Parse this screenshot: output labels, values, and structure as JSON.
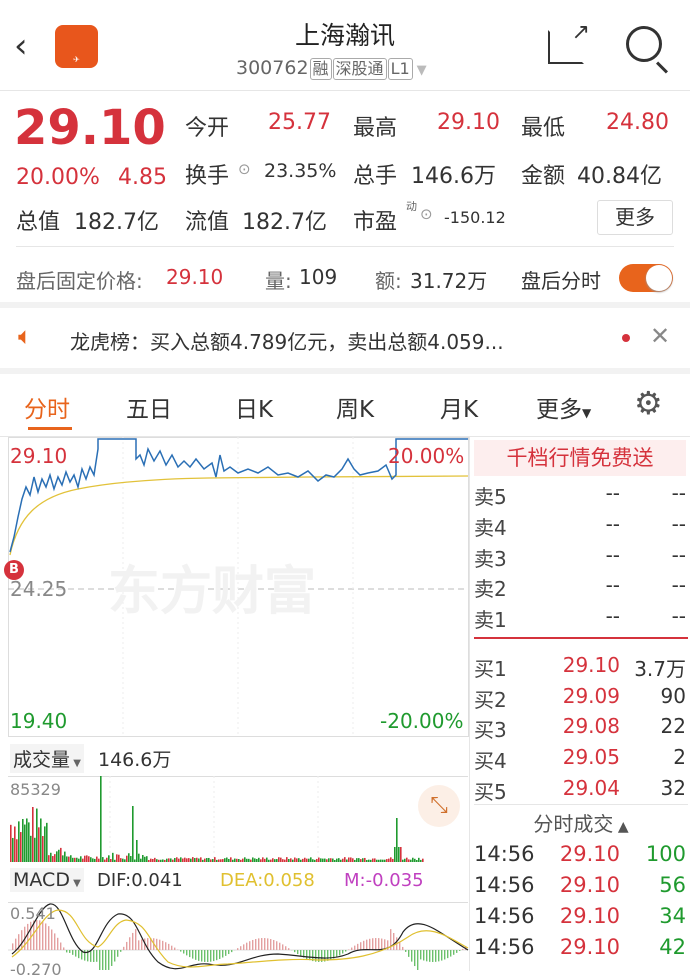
{
  "header": {
    "title": "上海瀚讯",
    "code": "300762",
    "tags": [
      "融",
      "深股通",
      "L1"
    ],
    "logo_text": "东方财富"
  },
  "quote": {
    "price": "29.10",
    "change_pct": "20.00%",
    "change": "4.85",
    "rows": [
      [
        {
          "label": "今开",
          "value": "25.77"
        },
        {
          "label": "最高",
          "value": "29.10"
        },
        {
          "label": "最低",
          "value": "24.80"
        }
      ],
      [
        {
          "label": "换手",
          "value": "23.35%"
        },
        {
          "label": "总手",
          "value": "146.6万"
        },
        {
          "label": "金额",
          "value": "40.84亿"
        }
      ],
      [
        {
          "label": "总值",
          "value": "182.7亿"
        },
        {
          "label": "流值",
          "value": "182.7亿"
        },
        {
          "label": "市盈",
          "sup": "动",
          "value": "-150.12"
        }
      ]
    ],
    "more": "更多"
  },
  "after_hours": {
    "price_label": "盘后固定价格:",
    "price": "29.10",
    "vol_label": "量:",
    "vol": "109",
    "amt_label": "额:",
    "amt": "31.72万",
    "toggle_label": "盘后分时",
    "toggle_on": true
  },
  "notice": {
    "text": "龙虎榜：买入总额4.789亿元，卖出总额4.059..."
  },
  "tabs": [
    "分时",
    "五日",
    "日K",
    "周K",
    "月K",
    "更多"
  ],
  "active_tab": "分时",
  "chart": {
    "high": "29.10",
    "high_pct": "20.00%",
    "mid": "24.25",
    "low": "19.40",
    "low_pct": "-20.00%",
    "watermark": "东方财富",
    "b_marker": "B"
  },
  "volume": {
    "label": "成交量",
    "total": "146.6万",
    "max": "85329"
  },
  "macd": {
    "label": "MACD",
    "dif": "DIF:0.041",
    "dea": "DEA:0.058",
    "m": "M:-0.035",
    "top": "0.541",
    "bottom": "-0.270"
  },
  "orderbook": {
    "promo": "千档行情免费送",
    "sells": [
      {
        "l": "卖5",
        "p": "--",
        "v": "--"
      },
      {
        "l": "卖4",
        "p": "--",
        "v": "--"
      },
      {
        "l": "卖3",
        "p": "--",
        "v": "--"
      },
      {
        "l": "卖2",
        "p": "--",
        "v": "--"
      },
      {
        "l": "卖1",
        "p": "--",
        "v": "--"
      }
    ],
    "buys": [
      {
        "l": "买1",
        "p": "29.10",
        "v": "3.7万"
      },
      {
        "l": "买2",
        "p": "29.09",
        "v": "90"
      },
      {
        "l": "买3",
        "p": "29.08",
        "v": "22"
      },
      {
        "l": "买4",
        "p": "29.05",
        "v": "2"
      },
      {
        "l": "买5",
        "p": "29.04",
        "v": "32"
      }
    ]
  },
  "trades": {
    "title": "分时成交",
    "rows": [
      {
        "t": "14:56",
        "p": "29.10",
        "v": "100"
      },
      {
        "t": "14:56",
        "p": "29.10",
        "v": "56"
      },
      {
        "t": "14:56",
        "p": "29.10",
        "v": "34"
      },
      {
        "t": "14:56",
        "p": "29.10",
        "v": "42"
      }
    ]
  },
  "colors": {
    "up": "#d5323c",
    "down": "#1f9a2e",
    "accent": "#e8641c",
    "dea": "#e0c030",
    "m": "#c040c0"
  }
}
